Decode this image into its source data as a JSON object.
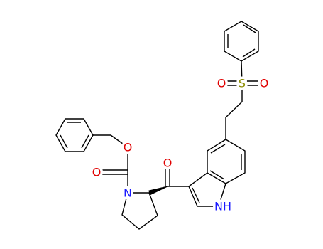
{
  "atoms": {
    "sulfonyl_o_left": "O",
    "sulfur": "S",
    "sulfonyl_o_right": "O",
    "ketone_o": "O",
    "indole_nh": "NH",
    "pyrrolidine_n": "N",
    "carbamate_o_double": "O",
    "ester_o": "O"
  }
}
